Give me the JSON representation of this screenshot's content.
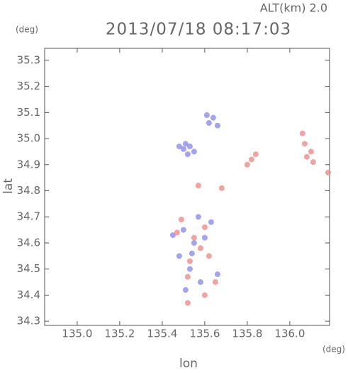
{
  "chart_data": {
    "type": "scatter",
    "title": "2013/07/18 08:17:03",
    "subtitle": "ALT(km) 2.0",
    "x_label": "lon",
    "x_unit": "(deg)",
    "y_label": "lat",
    "y_unit": "(deg)",
    "xlim": [
      134.847,
      136.187
    ],
    "ylim": [
      34.284,
      35.346
    ],
    "xticks": [
      {
        "value": 135,
        "label": "135.0"
      },
      135.2,
      135.4,
      135.6,
      135.8,
      {
        "value": 136,
        "label": "136.0"
      }
    ],
    "yticks": [
      34.3,
      34.4,
      34.5,
      34.6,
      34.7,
      34.8,
      34.9,
      {
        "value": 35,
        "label": "35.0"
      },
      35.1,
      35.2,
      35.3
    ],
    "series": [
      {
        "color": "#8c8cee",
        "x": [
          135.5,
          135.53,
          135.52,
          135.55,
          135.48,
          135.51,
          135.62,
          135.64,
          135.66,
          135.61,
          135.5,
          135.55,
          135.48,
          135.6,
          135.53,
          135.58,
          135.51,
          135.45,
          135.63,
          135.57,
          135.66,
          135.54
        ],
        "values": [
          34.96,
          34.97,
          34.94,
          34.95,
          34.97,
          34.98,
          35.06,
          35.08,
          35.05,
          35.09,
          34.65,
          34.6,
          34.55,
          34.62,
          34.5,
          34.45,
          34.42,
          34.63,
          34.68,
          34.7,
          34.48,
          34.56
        ]
      },
      {
        "color": "#ee8c8c",
        "x": [
          136.08,
          136.1,
          136.07,
          136.11,
          136.06,
          135.82,
          135.84,
          135.8,
          135.52,
          135.55,
          135.6,
          135.47,
          135.58,
          135.52,
          135.62,
          135.65,
          135.49,
          135.57,
          135.68,
          135.53,
          135.6,
          136.18
        ],
        "values": [
          34.93,
          34.95,
          34.98,
          34.91,
          35.02,
          34.92,
          34.94,
          34.9,
          34.37,
          34.62,
          34.66,
          34.64,
          34.58,
          34.47,
          34.55,
          34.45,
          34.69,
          34.82,
          34.81,
          34.53,
          34.4,
          34.87
        ]
      }
    ]
  }
}
